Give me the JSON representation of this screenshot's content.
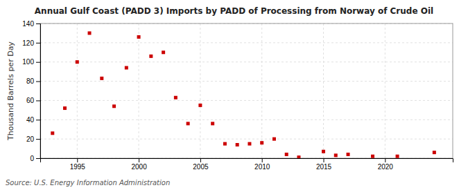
{
  "chart_data": {
    "type": "scatter",
    "title": "Annual Gulf Coast (PADD 3) Imports by PADD of Processing from Norway of Crude Oil",
    "ylabel": "Thousand Barrels per Day",
    "source": "Source: U.S. Energy Information Administration",
    "x": [
      1993,
      1994,
      1995,
      1996,
      1997,
      1998,
      1999,
      2000,
      2001,
      2002,
      2003,
      2004,
      2005,
      2006,
      2007,
      2008,
      2009,
      2010,
      2011,
      2012,
      2013,
      2015,
      2016,
      2017,
      2019,
      2021,
      2024
    ],
    "values": [
      26,
      52,
      100,
      130,
      83,
      54,
      94,
      126,
      106,
      110,
      63,
      36,
      55,
      36,
      15,
      14,
      15,
      16,
      20,
      4,
      1,
      7,
      3,
      4,
      2,
      2,
      6
    ],
    "color": "#cc0000",
    "marker": "square",
    "xlim": [
      1992,
      2025.5
    ],
    "ylim": [
      0,
      140
    ],
    "xticks": [
      1995,
      2000,
      2005,
      2010,
      2015,
      2020
    ],
    "yticks": [
      0,
      20,
      40,
      60,
      80,
      100,
      120,
      140
    ],
    "grid": true
  }
}
